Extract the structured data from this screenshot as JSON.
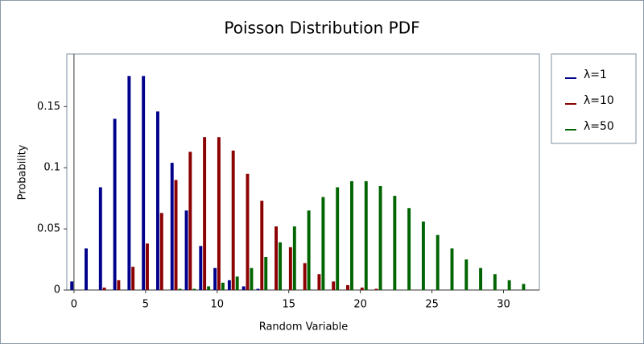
{
  "chart_data": {
    "type": "bar",
    "title": "Poisson Distribution PDF",
    "x_label": "Random Variable",
    "y_label": "Probability",
    "x": [
      0,
      1,
      2,
      3,
      4,
      5,
      6,
      7,
      8,
      9,
      10,
      11,
      12,
      13,
      14,
      15,
      16,
      17,
      18,
      19,
      20,
      21,
      22,
      23,
      24,
      25,
      26,
      27,
      28,
      29,
      30,
      31
    ],
    "series": [
      {
        "name": "λ=1",
        "color": "#00008b",
        "values": [
          0.007,
          0.034,
          0.084,
          0.14,
          0.175,
          0.175,
          0.146,
          0.104,
          0.065,
          0.036,
          0.018,
          0.008,
          0.003,
          0.001,
          0,
          0,
          0,
          0,
          0,
          0,
          0,
          0,
          0,
          0,
          0,
          0,
          0,
          0,
          0,
          0,
          0,
          0
        ]
      },
      {
        "name": "λ=10",
        "color": "#8b0000",
        "values": [
          0,
          0,
          0.002,
          0.008,
          0.019,
          0.038,
          0.063,
          0.09,
          0.113,
          0.125,
          0.125,
          0.114,
          0.095,
          0.073,
          0.052,
          0.035,
          0.022,
          0.013,
          0.007,
          0.004,
          0.002,
          0.001,
          0,
          0,
          0,
          0,
          0,
          0,
          0,
          0,
          0,
          0
        ]
      },
      {
        "name": "λ=50",
        "color": "#006400",
        "values": [
          0,
          0,
          0,
          0,
          0,
          0,
          0,
          0.001,
          0.001,
          0.003,
          0.006,
          0.011,
          0.018,
          0.027,
          0.039,
          0.052,
          0.065,
          0.076,
          0.084,
          0.089,
          0.089,
          0.085,
          0.077,
          0.067,
          0.056,
          0.045,
          0.034,
          0.025,
          0.018,
          0.013,
          0.008,
          0.005
        ]
      }
    ],
    "xlim": [
      -0.5,
      32.5
    ],
    "ylim": [
      0,
      0.193
    ],
    "xticks": [
      0,
      5,
      10,
      15,
      20,
      25,
      30
    ],
    "yticks": [
      0,
      0.05,
      0.1,
      0.15
    ],
    "legend": "right"
  }
}
